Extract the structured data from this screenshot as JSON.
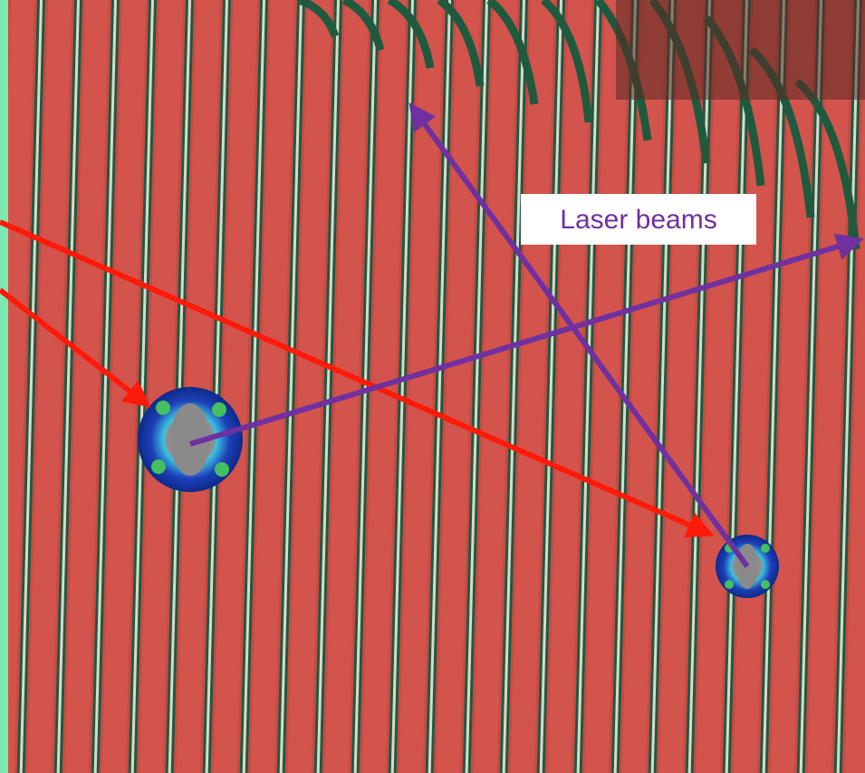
{
  "annotation": {
    "label": "Laser beams"
  }
}
